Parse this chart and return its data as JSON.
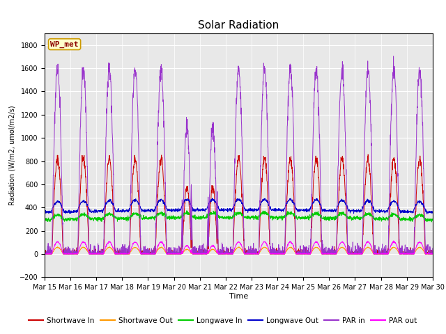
{
  "title": "Solar Radiation",
  "ylabel": "Radiation (W/m2, umol/m2/s)",
  "xlabel": "Time",
  "ylim": [
    -200,
    1900
  ],
  "yticks": [
    -200,
    0,
    200,
    400,
    600,
    800,
    1000,
    1200,
    1400,
    1600,
    1800
  ],
  "x_labels": [
    "Mar 15",
    "Mar 16",
    "Mar 17",
    "Mar 18",
    "Mar 19",
    "Mar 20",
    "Mar 21",
    "Mar 22",
    "Mar 23",
    "Mar 24",
    "Mar 25",
    "Mar 26",
    "Mar 27",
    "Mar 28",
    "Mar 29",
    "Mar 30"
  ],
  "station_label": "WP_met",
  "colors": {
    "shortwave_in": "#cc0000",
    "shortwave_out": "#ff9900",
    "longwave_in": "#00cc00",
    "longwave_out": "#0000cc",
    "par_in": "#9933cc",
    "par_out": "#ff00ff"
  },
  "background_color": "#e8e8e8",
  "figure_background": "#ffffff",
  "grid_color": "#ffffff",
  "title_fontsize": 11,
  "axis_label_fontsize": 7,
  "tick_fontsize": 7,
  "legend_fontsize": 7.5
}
